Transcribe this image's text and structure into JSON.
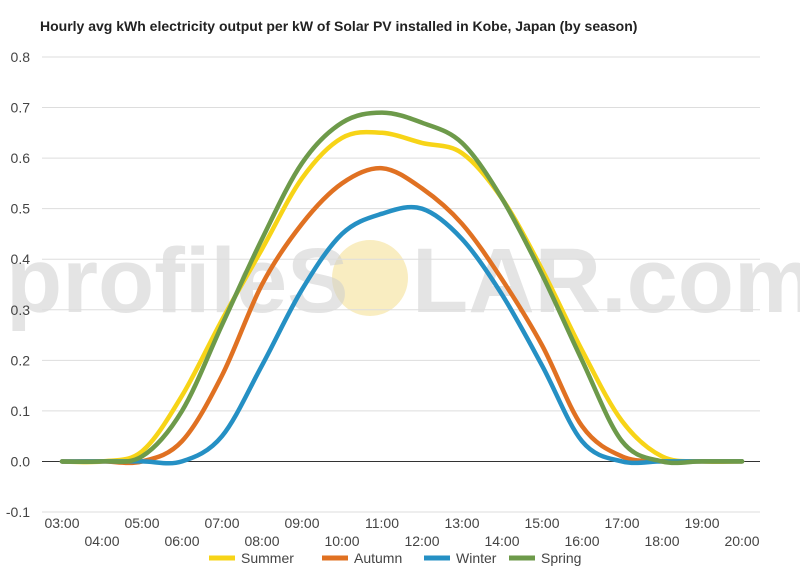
{
  "chart_data": {
    "type": "line",
    "title": "Hourly avg kWh electricity output per kW of Solar PV installed in Kobe, Japan (by season)",
    "xlabel": "",
    "ylabel": "",
    "ylim": [
      -0.1,
      0.8
    ],
    "yticks": [
      "-0.1",
      "0.0",
      "0.1",
      "0.2",
      "0.3",
      "0.4",
      "0.5",
      "0.6",
      "0.7",
      "0.8"
    ],
    "categories": [
      "03:00",
      "04:00",
      "05:00",
      "06:00",
      "07:00",
      "08:00",
      "09:00",
      "10:00",
      "11:00",
      "12:00",
      "13:00",
      "14:00",
      "15:00",
      "16:00",
      "17:00",
      "18:00",
      "19:00",
      "20:00"
    ],
    "grid": true,
    "legend": "bottom",
    "series": [
      {
        "name": "Summer",
        "color": "#f7d417",
        "values": [
          0.0,
          0.0,
          0.02,
          0.13,
          0.28,
          0.42,
          0.56,
          0.64,
          0.65,
          0.63,
          0.61,
          0.52,
          0.38,
          0.22,
          0.08,
          0.01,
          0.0,
          0.0
        ]
      },
      {
        "name": "Autumn",
        "color": "#e07122",
        "values": [
          0.0,
          0.0,
          0.0,
          0.04,
          0.17,
          0.35,
          0.47,
          0.55,
          0.58,
          0.54,
          0.47,
          0.36,
          0.23,
          0.07,
          0.01,
          0.0,
          0.0,
          0.0
        ]
      },
      {
        "name": "Winter",
        "color": "#2590c4",
        "values": [
          0.0,
          0.0,
          0.0,
          0.0,
          0.05,
          0.19,
          0.34,
          0.45,
          0.49,
          0.5,
          0.44,
          0.33,
          0.19,
          0.04,
          0.0,
          0.0,
          0.0,
          0.0
        ]
      },
      {
        "name": "Spring",
        "color": "#6d9a4a",
        "values": [
          0.0,
          0.0,
          0.01,
          0.1,
          0.27,
          0.44,
          0.59,
          0.67,
          0.69,
          0.67,
          0.63,
          0.52,
          0.37,
          0.2,
          0.04,
          0.0,
          0.0,
          0.0
        ]
      }
    ]
  },
  "watermark": {
    "text_left": "profileS",
    "text_right": "LAR.com",
    "sun_color": "#f7e6a6"
  }
}
